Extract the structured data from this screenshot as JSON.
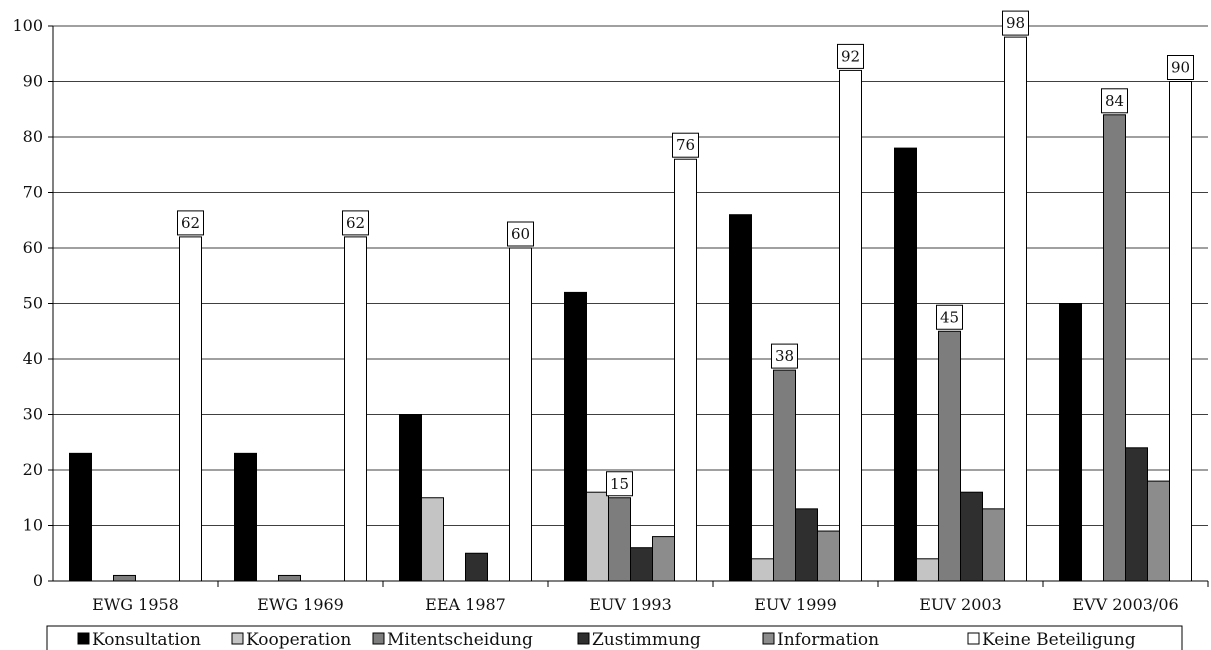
{
  "chart_data": {
    "type": "bar",
    "categories": [
      "EWG 1958",
      "EWG 1969",
      "EEA 1987",
      "EUV 1993",
      "EUV 1999",
      "EUV 2003",
      "EVV 2003/06"
    ],
    "ylim": [
      0,
      100
    ],
    "yticks": [
      0,
      10,
      20,
      30,
      40,
      50,
      60,
      70,
      80,
      90,
      100
    ],
    "grid": "horizontal",
    "legend_position": "bottom",
    "series": [
      {
        "name": "Konsultation",
        "color": "#000000",
        "values": [
          23,
          23,
          30,
          52,
          66,
          78,
          50
        ]
      },
      {
        "name": "Kooperation",
        "color": "#c4c4c4",
        "values": [
          0,
          0,
          15,
          16,
          4,
          4,
          0
        ]
      },
      {
        "name": "Mitentscheidung",
        "color": "#7d7d7d",
        "values": [
          1,
          1,
          0,
          15,
          38,
          45,
          84
        ]
      },
      {
        "name": "Zustimmung",
        "color": "#2f2f2f",
        "values": [
          0,
          0,
          5,
          6,
          13,
          16,
          24
        ]
      },
      {
        "name": "Information",
        "color": "#8c8c8c",
        "values": [
          0,
          0,
          0,
          8,
          9,
          13,
          18
        ]
      },
      {
        "name": "Keine Beteiligung",
        "color": "#ffffff",
        "values": [
          62,
          62,
          60,
          76,
          92,
          98,
          90
        ]
      }
    ],
    "data_labels": [
      {
        "category": "EWG 1958",
        "series": "Keine Beteiligung",
        "text": "62"
      },
      {
        "category": "EWG 1969",
        "series": "Keine Beteiligung",
        "text": "62"
      },
      {
        "category": "EEA 1987",
        "series": "Keine Beteiligung",
        "text": "60"
      },
      {
        "category": "EUV 1993",
        "series": "Mitentscheidung",
        "text": "15"
      },
      {
        "category": "EUV 1993",
        "series": "Keine Beteiligung",
        "text": "76"
      },
      {
        "category": "EUV 1999",
        "series": "Mitentscheidung",
        "text": "38"
      },
      {
        "category": "EUV 1999",
        "series": "Keine Beteiligung",
        "text": "92"
      },
      {
        "category": "EUV 2003",
        "series": "Mitentscheidung",
        "text": "45"
      },
      {
        "category": "EUV 2003",
        "series": "Keine Beteiligung",
        "text": "98"
      },
      {
        "category": "EVV 2003/06",
        "series": "Mitentscheidung",
        "text": "84"
      },
      {
        "category": "EVV 2003/06",
        "series": "Keine Beteiligung",
        "text": "90"
      }
    ]
  }
}
